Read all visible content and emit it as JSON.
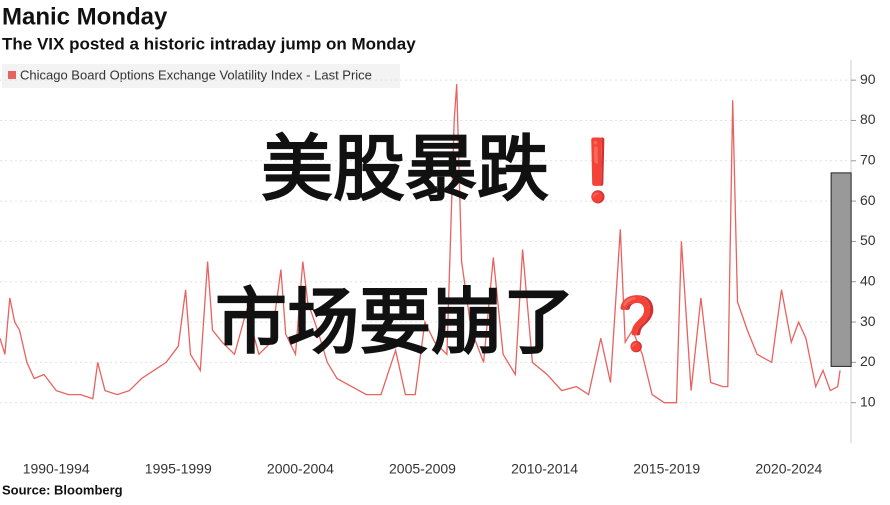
{
  "chart_data": {
    "type": "line",
    "title": "Manic Monday",
    "subtitle": "The VIX posted a historic intraday jump on Monday",
    "source": "Source: Bloomberg",
    "series": [
      {
        "name": "Chicago Board Options Exchange Volatility Index - Last Price",
        "color": "#e8625f",
        "x": [
          1990.2,
          1990.4,
          1990.6,
          1990.8,
          1991.0,
          1991.3,
          1991.6,
          1992.0,
          1992.5,
          1993.0,
          1993.5,
          1994.0,
          1994.2,
          1994.5,
          1995.0,
          1995.5,
          1996.0,
          1996.5,
          1997.0,
          1997.5,
          1997.8,
          1998.0,
          1998.4,
          1998.7,
          1998.9,
          1999.3,
          1999.8,
          2000.3,
          2000.8,
          2001.3,
          2001.7,
          2001.9,
          2002.3,
          2002.6,
          2002.8,
          2003.2,
          2003.6,
          2004.0,
          2004.6,
          2005.2,
          2005.8,
          2006.4,
          2006.8,
          2007.2,
          2007.6,
          2008.0,
          2008.5,
          2008.8,
          2008.9,
          2009.1,
          2009.5,
          2010.0,
          2010.4,
          2010.8,
          2011.3,
          2011.6,
          2012.0,
          2012.6,
          2013.2,
          2013.8,
          2014.3,
          2014.8,
          2015.2,
          2015.6,
          2015.8,
          2016.1,
          2016.5,
          2016.9,
          2017.4,
          2017.9,
          2018.1,
          2018.5,
          2018.9,
          2019.3,
          2019.8,
          2020.0,
          2020.2,
          2020.4,
          2020.8,
          2021.2,
          2021.8,
          2022.2,
          2022.6,
          2022.9,
          2023.2,
          2023.6,
          2023.9,
          2024.2,
          2024.5,
          2024.6
        ],
        "values": [
          26,
          22,
          36,
          30,
          28,
          20,
          16,
          17,
          13,
          12,
          12,
          11,
          20,
          13,
          12,
          13,
          16,
          18,
          20,
          24,
          38,
          22,
          18,
          45,
          28,
          25,
          22,
          33,
          22,
          25,
          43,
          27,
          22,
          45,
          35,
          28,
          20,
          16,
          14,
          12,
          12,
          23,
          12,
          12,
          30,
          25,
          22,
          80,
          89,
          45,
          28,
          20,
          46,
          22,
          17,
          48,
          20,
          17,
          13,
          14,
          12,
          26,
          15,
          53,
          25,
          28,
          22,
          12,
          10,
          10,
          50,
          13,
          36,
          15,
          14,
          14,
          85,
          35,
          28,
          22,
          20,
          38,
          25,
          30,
          26,
          14,
          18,
          13,
          14,
          18
        ]
      }
    ],
    "xlim": [
      1990.2,
      2024.8
    ],
    "xticks": [
      {
        "value": 1992.5,
        "label": "1990-1994"
      },
      {
        "value": 1997.5,
        "label": "1995-1999"
      },
      {
        "value": 2002.5,
        "label": "2000-2004"
      },
      {
        "value": 2007.5,
        "label": "2005-2009"
      },
      {
        "value": 2012.5,
        "label": "2010-2014"
      },
      {
        "value": 2017.5,
        "label": "2015-2019"
      },
      {
        "value": 2022.5,
        "label": "2020-2024"
      }
    ],
    "ylim": [
      0,
      95
    ],
    "yticks": [
      10,
      20,
      30,
      40,
      50,
      60,
      70,
      80,
      90
    ],
    "grid": true,
    "intraday_jump": {
      "x": 2024.6,
      "low": 19,
      "high": 67,
      "color": "#999999"
    },
    "annotations": [
      {
        "text": "美股暴跌",
        "color": "#111111"
      },
      {
        "text": "❗",
        "color": "#d81818"
      },
      {
        "text": "市场要崩了",
        "color": "#111111"
      },
      {
        "text": "❓",
        "color": "#d81818"
      }
    ]
  }
}
